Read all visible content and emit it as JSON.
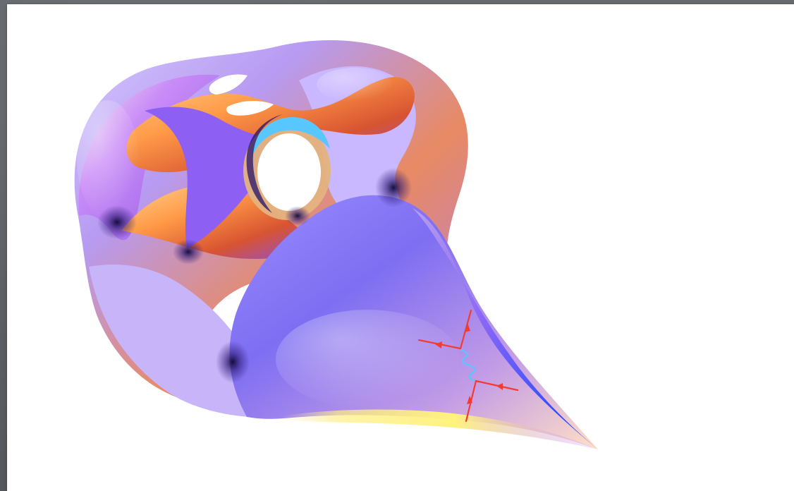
{
  "scene": {
    "subject": "calabi-yau-manifold-render",
    "overlay": "feynman-diagram"
  },
  "colors": {
    "background": "#5f6368",
    "slide": "#ffffff",
    "surface_lavender": "#b79af1",
    "surface_purple": "#7c55ea",
    "surface_blue": "#1f3fff",
    "surface_orange": "#f19a48",
    "surface_red": "#d8442f",
    "surface_yellow": "#f5f26d",
    "diagram_red": "#f23b32",
    "diagram_cyan": "#58c7ff"
  }
}
